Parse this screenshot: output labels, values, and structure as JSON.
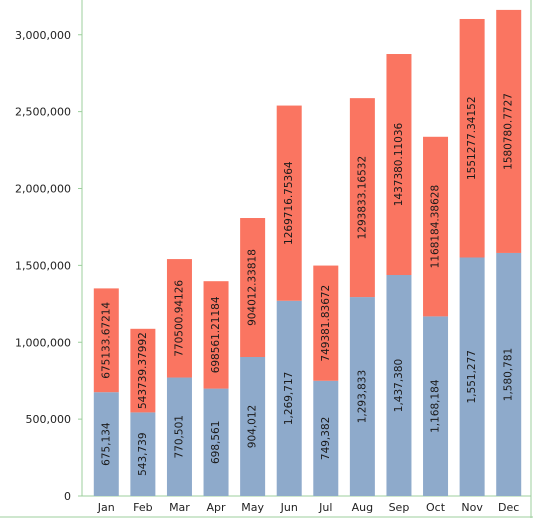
{
  "chart_data": {
    "type": "bar",
    "stacked": true,
    "categories": [
      "Jan",
      "Feb",
      "Mar",
      "Apr",
      "May",
      "Jun",
      "Jul",
      "Aug",
      "Sep",
      "Oct",
      "Nov",
      "Dec"
    ],
    "series": [
      {
        "color": "#8eaacb",
        "values": [
          675134,
          543739,
          770501,
          698561,
          904012,
          1269717,
          749382,
          1293833,
          1437380,
          1168184,
          1551277,
          1580781
        ],
        "labels": [
          "675,134",
          "543,739",
          "770,501",
          "698,561",
          "904,012",
          "1,269,717",
          "749,382",
          "1,293,833",
          "1,437,380",
          "1,168,184",
          "1,551,277",
          "1,580,781"
        ]
      },
      {
        "color": "#fa7561",
        "values": [
          675133.67214,
          543739.37992,
          770500.94126,
          698561.21184,
          904012.33818,
          1269716.75364,
          749381.83672,
          1293833.16532,
          1437380.11036,
          1168184.38628,
          1551277.34152,
          1580780.7727
        ],
        "labels": [
          "675133.67214",
          "543739.37992",
          "770500.94126",
          "698561.21184",
          "904012.33818",
          "1269716.75364",
          "749381.83672",
          "1293833.16532",
          "1437380.11036",
          "1168184.38628",
          "1551277.34152",
          "1580780.7727"
        ]
      }
    ],
    "ylim": [
      0,
      3200000
    ],
    "yticks": [
      0,
      500000,
      1000000,
      1500000,
      2000000,
      2500000,
      3000000
    ],
    "ytick_labels": [
      "0",
      "500,000",
      "1,000,000",
      "1,500,000",
      "2,000,000",
      "2,500,000",
      "3,000,000"
    ],
    "grid": false,
    "value_labels": "inside-rotated",
    "colors": {
      "axis": "#9ccf9c",
      "text": "#222222"
    }
  }
}
